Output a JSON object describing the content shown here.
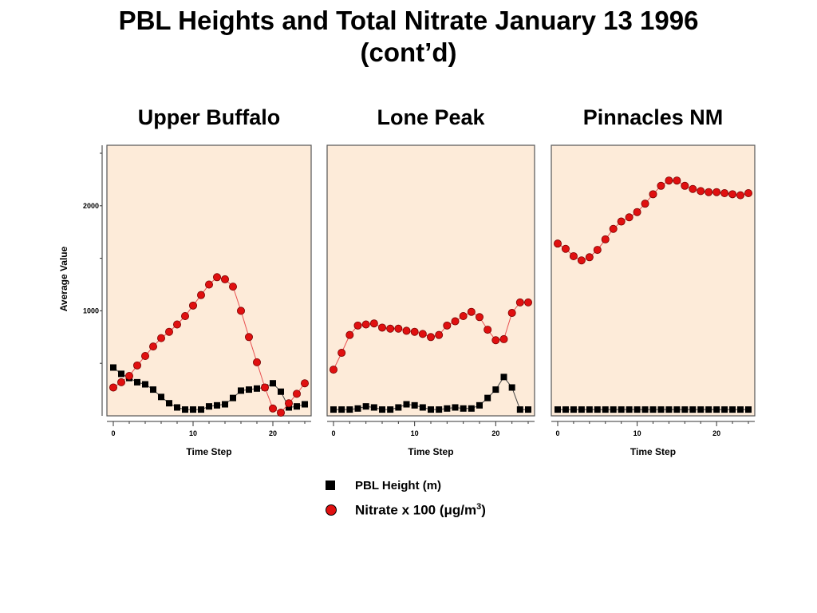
{
  "title_lines": [
    "PBL Heights and Total Nitrate January 13 1996",
    "(cont’d)"
  ],
  "colors": {
    "plot_bg": "#fdebd9",
    "nitrate": "#e01010",
    "nitrate_line": "#e85050",
    "pbl": "#000000"
  },
  "legend": {
    "pbl_label": "PBL Height (m)",
    "nitrate_label_prefix": "Nitrate x 100 (",
    "nitrate_unit_mu": "μ",
    "nitrate_unit_rest": "g/m",
    "nitrate_unit_exp": "3",
    "nitrate_label_suffix": ")"
  },
  "chart_data": [
    {
      "type": "line",
      "title": "Upper Buffalo",
      "xlabel": "Time Step",
      "ylabel": "Average Value",
      "xlim": [
        0,
        24
      ],
      "ylim": [
        0,
        2500
      ],
      "xticks": [
        0,
        10,
        20
      ],
      "xtick_labels": [
        "0",
        "10",
        "20"
      ],
      "yticks": [
        1000,
        2000
      ],
      "ytick_labels": [
        "1000",
        "2000"
      ],
      "x": [
        0,
        1,
        2,
        3,
        4,
        5,
        6,
        7,
        8,
        9,
        10,
        11,
        12,
        13,
        14,
        15,
        16,
        17,
        18,
        19,
        20,
        21,
        22,
        23,
        24
      ],
      "series": [
        {
          "name": "PBL Height (m)",
          "marker": "square",
          "values": [
            460,
            400,
            360,
            320,
            300,
            250,
            180,
            120,
            80,
            60,
            60,
            60,
            90,
            100,
            110,
            170,
            240,
            250,
            260,
            270,
            310,
            230,
            80,
            90,
            110
          ]
        },
        {
          "name": "Nitrate x 100 (μg/m3)",
          "marker": "circle",
          "values": [
            270,
            320,
            380,
            480,
            570,
            660,
            740,
            800,
            870,
            950,
            1050,
            1150,
            1250,
            1320,
            1300,
            1230,
            1000,
            750,
            510,
            270,
            70,
            30,
            120,
            210,
            310
          ]
        }
      ]
    },
    {
      "type": "line",
      "title": "Lone Peak",
      "xlabel": "Time Step",
      "xlim": [
        0,
        24
      ],
      "ylim": [
        0,
        2500
      ],
      "xticks": [
        0,
        10,
        20
      ],
      "xtick_labels": [
        "0",
        "10",
        "20"
      ],
      "x": [
        0,
        1,
        2,
        3,
        4,
        5,
        6,
        7,
        8,
        9,
        10,
        11,
        12,
        13,
        14,
        15,
        16,
        17,
        18,
        19,
        20,
        21,
        22,
        23,
        24
      ],
      "series": [
        {
          "name": "PBL Height (m)",
          "marker": "square",
          "values": [
            60,
            60,
            60,
            70,
            90,
            80,
            60,
            60,
            80,
            110,
            100,
            80,
            60,
            60,
            70,
            80,
            70,
            70,
            100,
            170,
            250,
            370,
            270,
            60,
            60
          ]
        },
        {
          "name": "Nitrate x 100 (μg/m3)",
          "marker": "circle",
          "values": [
            440,
            600,
            770,
            860,
            870,
            880,
            840,
            830,
            830,
            810,
            800,
            780,
            750,
            770,
            860,
            900,
            950,
            990,
            940,
            820,
            720,
            730,
            980,
            1080,
            1080
          ]
        }
      ]
    },
    {
      "type": "line",
      "title": "Pinnacles NM",
      "xlabel": "Time Step",
      "xlim": [
        0,
        24
      ],
      "ylim": [
        0,
        2500
      ],
      "xticks": [
        0,
        10,
        20
      ],
      "xtick_labels": [
        "0",
        "10",
        "20"
      ],
      "x": [
        0,
        1,
        2,
        3,
        4,
        5,
        6,
        7,
        8,
        9,
        10,
        11,
        12,
        13,
        14,
        15,
        16,
        17,
        18,
        19,
        20,
        21,
        22,
        23,
        24
      ],
      "series": [
        {
          "name": "PBL Height (m)",
          "marker": "square",
          "values": [
            60,
            60,
            60,
            60,
            60,
            60,
            60,
            60,
            60,
            60,
            60,
            60,
            60,
            60,
            60,
            60,
            60,
            60,
            60,
            60,
            60,
            60,
            60,
            60,
            60
          ]
        },
        {
          "name": "Nitrate x 100 (μg/m3)",
          "marker": "circle",
          "values": [
            1640,
            1590,
            1520,
            1480,
            1510,
            1580,
            1680,
            1780,
            1850,
            1890,
            1940,
            2020,
            2110,
            2190,
            2240,
            2240,
            2190,
            2160,
            2140,
            2130,
            2130,
            2120,
            2110,
            2100,
            2120
          ]
        }
      ]
    }
  ]
}
